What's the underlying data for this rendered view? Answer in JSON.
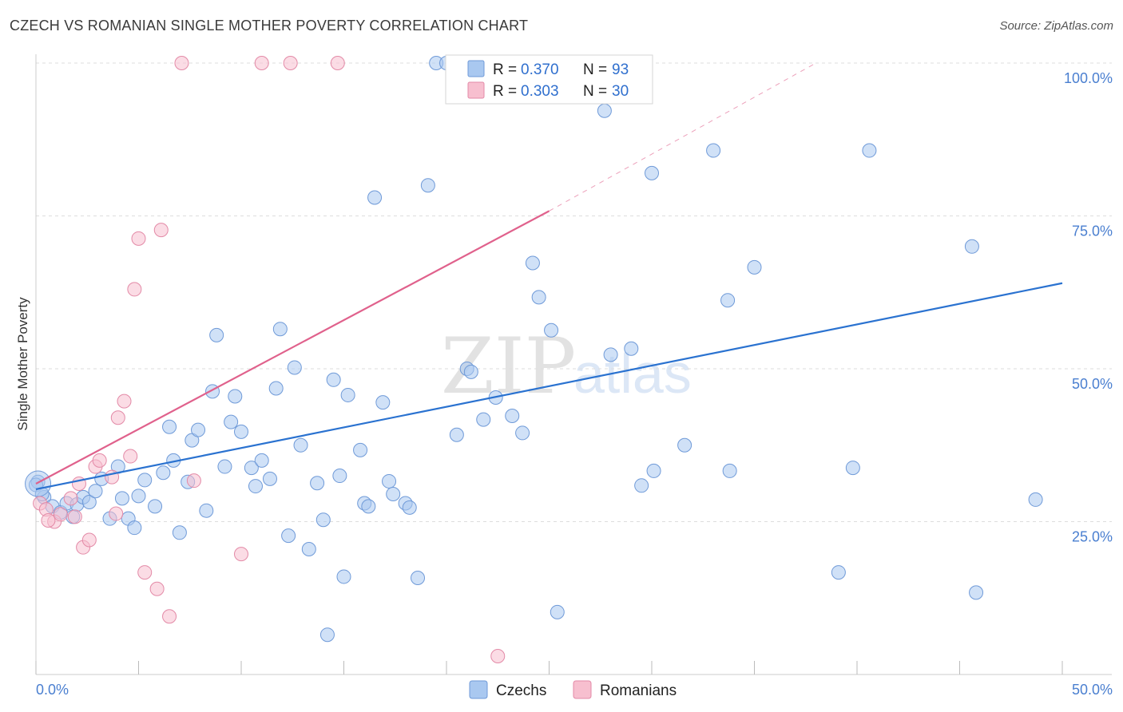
{
  "title": "CZECH VS ROMANIAN SINGLE MOTHER POVERTY CORRELATION CHART",
  "source": "Source: ZipAtlas.com",
  "watermark": {
    "zip": "ZIP",
    "atlas": "atlas"
  },
  "legend": {
    "czechs": {
      "r_label": "R = ",
      "r_value": "0.370",
      "n_label": "N = ",
      "n_value": "93"
    },
    "romanians": {
      "r_label": "R = ",
      "r_value": "0.303",
      "n_label": "N = ",
      "n_value": "30"
    }
  },
  "bottom_legend": {
    "czechs": "Czechs",
    "romanians": "Romanians"
  },
  "colors": {
    "czechs_fill": "#a9c8f0",
    "czechs_stroke": "#6f9ad8",
    "czechs_line": "#2a72d0",
    "romanians_fill": "#f7bfcf",
    "romanians_stroke": "#e38aa7",
    "romanians_line": "#e0618c",
    "grid": "#dddddd",
    "tick_text": "#4a7fd0"
  },
  "chart_data": {
    "type": "scatter",
    "title": "CZECH VS ROMANIAN SINGLE MOTHER POVERTY CORRELATION CHART",
    "xlabel": "",
    "ylabel": "Single Mother Poverty",
    "xlim": [
      0,
      50
    ],
    "ylim": [
      0,
      100
    ],
    "x_tick_labels": [
      "0.0%",
      "50.0%"
    ],
    "y_tick_labels": [
      "25.0%",
      "50.0%",
      "75.0%",
      "100.0%"
    ],
    "y_ticks": [
      25,
      50,
      75,
      100
    ],
    "grid": true,
    "legend_placement": "top-center",
    "series": [
      {
        "name": "Czechs",
        "r": 0.37,
        "n": 93,
        "trend": {
          "x": [
            0,
            50
          ],
          "y": [
            30.3,
            64.0
          ],
          "style": "solid"
        },
        "points": [
          [
            0.1,
            31.5
          ],
          [
            0.4,
            29.0
          ],
          [
            0.8,
            27.5
          ],
          [
            1.2,
            26.5
          ],
          [
            1.5,
            28.0
          ],
          [
            1.8,
            25.8
          ],
          [
            2.0,
            27.8
          ],
          [
            2.3,
            29.0
          ],
          [
            2.6,
            28.2
          ],
          [
            2.9,
            30.0
          ],
          [
            3.2,
            32.0
          ],
          [
            3.6,
            25.5
          ],
          [
            4.0,
            34.0
          ],
          [
            4.2,
            28.8
          ],
          [
            4.5,
            25.5
          ],
          [
            4.8,
            24.0
          ],
          [
            5.0,
            29.2
          ],
          [
            5.3,
            31.8
          ],
          [
            5.8,
            27.5
          ],
          [
            6.2,
            33.0
          ],
          [
            6.5,
            40.5
          ],
          [
            6.7,
            35.0
          ],
          [
            7.0,
            23.2
          ],
          [
            7.4,
            31.5
          ],
          [
            7.6,
            38.3
          ],
          [
            7.9,
            40.0
          ],
          [
            8.3,
            26.8
          ],
          [
            8.6,
            46.3
          ],
          [
            8.8,
            55.5
          ],
          [
            9.2,
            34.0
          ],
          [
            9.5,
            41.3
          ],
          [
            9.7,
            45.5
          ],
          [
            10.0,
            39.7
          ],
          [
            10.5,
            33.8
          ],
          [
            10.7,
            30.8
          ],
          [
            11.0,
            35.0
          ],
          [
            11.4,
            32.0
          ],
          [
            11.7,
            46.8
          ],
          [
            11.9,
            56.5
          ],
          [
            12.3,
            22.7
          ],
          [
            12.6,
            50.2
          ],
          [
            12.9,
            37.5
          ],
          [
            13.3,
            20.5
          ],
          [
            13.7,
            31.3
          ],
          [
            14.0,
            25.3
          ],
          [
            14.2,
            6.5
          ],
          [
            14.5,
            48.2
          ],
          [
            14.8,
            32.5
          ],
          [
            15.0,
            16.0
          ],
          [
            15.2,
            45.7
          ],
          [
            15.8,
            36.7
          ],
          [
            16.0,
            28.0
          ],
          [
            16.2,
            27.5
          ],
          [
            16.5,
            78.0
          ],
          [
            16.9,
            44.5
          ],
          [
            17.2,
            31.6
          ],
          [
            17.4,
            29.5
          ],
          [
            18.0,
            28.0
          ],
          [
            18.2,
            27.3
          ],
          [
            18.6,
            15.8
          ],
          [
            19.1,
            80.0
          ],
          [
            19.5,
            100.0
          ],
          [
            20.0,
            100.0
          ],
          [
            20.5,
            39.2
          ],
          [
            21.0,
            50.0
          ],
          [
            21.2,
            49.5
          ],
          [
            21.8,
            41.7
          ],
          [
            22.4,
            45.3
          ],
          [
            23.2,
            42.3
          ],
          [
            23.7,
            39.5
          ],
          [
            24.2,
            67.3
          ],
          [
            24.5,
            61.7
          ],
          [
            25.1,
            56.3
          ],
          [
            25.4,
            10.2
          ],
          [
            27.7,
            92.2
          ],
          [
            28.0,
            52.3
          ],
          [
            29.0,
            53.3
          ],
          [
            29.5,
            30.9
          ],
          [
            30.0,
            82.0
          ],
          [
            30.1,
            33.3
          ],
          [
            31.6,
            37.5
          ],
          [
            33.0,
            85.7
          ],
          [
            33.7,
            61.2
          ],
          [
            33.8,
            33.3
          ],
          [
            35.0,
            66.6
          ],
          [
            39.1,
            16.7
          ],
          [
            39.8,
            33.8
          ],
          [
            40.6,
            85.7
          ],
          [
            45.6,
            70.0
          ],
          [
            45.8,
            13.4
          ],
          [
            48.7,
            28.6
          ],
          [
            0.0,
            31.0
          ],
          [
            0.3,
            29.5
          ]
        ]
      },
      {
        "name": "Romanians",
        "r": 0.303,
        "n": 30,
        "trend": {
          "x": [
            0,
            25
          ],
          "y": [
            31.2,
            75.8
          ],
          "style": "solid",
          "extended_to": [
            38,
            100
          ],
          "extended_style": "dashed"
        },
        "points": [
          [
            0.2,
            28.0
          ],
          [
            0.5,
            27.0
          ],
          [
            0.9,
            25.0
          ],
          [
            1.2,
            26.2
          ],
          [
            1.7,
            28.8
          ],
          [
            1.9,
            25.8
          ],
          [
            2.1,
            31.2
          ],
          [
            2.3,
            20.8
          ],
          [
            2.6,
            22.0
          ],
          [
            2.9,
            34.0
          ],
          [
            3.1,
            35.0
          ],
          [
            3.7,
            32.3
          ],
          [
            3.9,
            26.3
          ],
          [
            4.0,
            42.0
          ],
          [
            4.3,
            44.7
          ],
          [
            4.6,
            35.7
          ],
          [
            4.8,
            63.0
          ],
          [
            5.0,
            71.3
          ],
          [
            5.3,
            16.7
          ],
          [
            5.9,
            14.0
          ],
          [
            6.1,
            72.7
          ],
          [
            6.5,
            9.5
          ],
          [
            7.1,
            100.0
          ],
          [
            7.7,
            31.7
          ],
          [
            10.0,
            19.7
          ],
          [
            11.0,
            100.0
          ],
          [
            12.4,
            100.0
          ],
          [
            14.7,
            100.0
          ],
          [
            22.5,
            3.0
          ],
          [
            0.6,
            25.2
          ]
        ]
      }
    ]
  }
}
